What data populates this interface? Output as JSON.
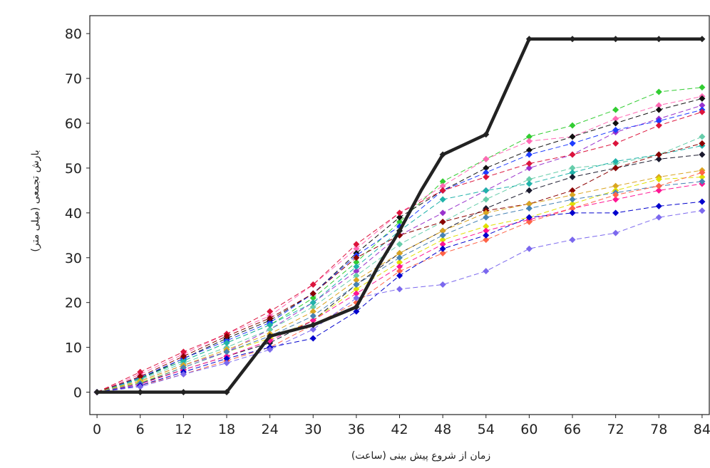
{
  "chart_data": {
    "type": "line",
    "title": "",
    "xlabel": "زمان از شروع پیش بینی (ساعت)",
    "ylabel": "بارش تجمعی (میلی متر)",
    "x": [
      0,
      6,
      12,
      18,
      24,
      30,
      36,
      42,
      48,
      54,
      60,
      66,
      72,
      78,
      84
    ],
    "xticks": [
      "0",
      "6",
      "12",
      "18",
      "24",
      "30",
      "36",
      "42",
      "48",
      "54",
      "60",
      "66",
      "72",
      "78",
      "84"
    ],
    "yticks": [
      "0",
      "10",
      "20",
      "30",
      "40",
      "50",
      "60",
      "70",
      "80"
    ],
    "xlim": [
      -1,
      85
    ],
    "ylim": [
      -5,
      84
    ],
    "grid": false,
    "legend": "none",
    "observed": {
      "color": "#222222",
      "x": [
        0,
        6,
        12,
        18,
        24,
        30,
        36,
        39,
        42,
        45,
        48,
        54,
        60,
        66,
        72,
        78,
        84
      ],
      "values": [
        0,
        0,
        0,
        0,
        12.5,
        15,
        19,
        28,
        36,
        45,
        53,
        57.5,
        78.8,
        78.8,
        78.8,
        78.8,
        78.8
      ]
    },
    "series": [
      {
        "color": "#32cd32",
        "values": [
          0,
          3.2,
          7,
          11,
          15,
          21,
          29,
          38,
          47,
          52,
          57,
          59.5,
          63,
          67,
          68
        ]
      },
      {
        "color": "#ff69b4",
        "values": [
          0,
          4,
          8.5,
          13,
          17,
          24,
          32,
          40,
          46,
          52,
          56,
          57,
          61,
          64,
          66
        ]
      },
      {
        "color": "#111111",
        "values": [
          0,
          3,
          7.5,
          12,
          16,
          22,
          31,
          39,
          45,
          50,
          54,
          57,
          60,
          63,
          65.5
        ]
      },
      {
        "color": "#9932cc",
        "values": [
          0,
          2.5,
          6,
          9,
          14,
          20,
          27,
          35,
          40,
          45,
          50,
          53,
          58,
          61,
          64
        ]
      },
      {
        "color": "#1e3cff",
        "values": [
          0,
          3.3,
          7.5,
          11.5,
          15.5,
          22,
          30.5,
          37,
          45,
          49,
          53,
          55.5,
          58.5,
          60.5,
          63
        ]
      },
      {
        "color": "#dc143c",
        "values": [
          0,
          4.5,
          9,
          13,
          18,
          24,
          33,
          40,
          45,
          48,
          51,
          53,
          55.5,
          59.5,
          62.5
        ]
      },
      {
        "color": "#66cdaa",
        "values": [
          0,
          2.8,
          6.5,
          10,
          14,
          19,
          26,
          33,
          38,
          43,
          47.5,
          50,
          51,
          53,
          57
        ]
      },
      {
        "color": "#20b2aa",
        "values": [
          0,
          3,
          7,
          11,
          15,
          20,
          28,
          36,
          43,
          45,
          46.5,
          49,
          51.5,
          53,
          55
        ]
      },
      {
        "color": "#1a1a2e",
        "values": [
          0,
          2,
          5,
          8,
          11,
          16,
          24,
          31,
          36,
          41,
          45,
          48,
          50,
          52,
          53
        ]
      },
      {
        "color": "#8b0000",
        "values": [
          0,
          3.5,
          8,
          12.5,
          16.5,
          22,
          30,
          35,
          38,
          40.5,
          42,
          45,
          50,
          53,
          55.5
        ]
      },
      {
        "color": "#daa520",
        "values": [
          0,
          2.5,
          6,
          9.5,
          13,
          18,
          25,
          31,
          36,
          40,
          42,
          44,
          46,
          48,
          49.5
        ]
      },
      {
        "color": "#e0e000",
        "values": [
          0,
          2.2,
          5.5,
          9,
          12,
          16,
          23,
          29,
          34,
          37,
          39,
          42,
          45,
          47.5,
          48
        ]
      },
      {
        "color": "#ff1493",
        "values": [
          0,
          1.8,
          5,
          8,
          11.5,
          16,
          22,
          28,
          33,
          36,
          38.5,
          41,
          43,
          45,
          46.5
        ]
      },
      {
        "color": "#4682b4",
        "values": [
          0,
          2,
          5.5,
          9,
          12.5,
          17,
          24,
          30,
          35,
          39,
          41,
          43,
          44.5,
          46,
          47
        ]
      },
      {
        "color": "#ff6347",
        "values": [
          0,
          1.5,
          4,
          7,
          10,
          15,
          20,
          27,
          31,
          34,
          38,
          41,
          44,
          46,
          49
        ]
      },
      {
        "color": "#0000cd",
        "values": [
          0,
          1.5,
          4.5,
          7.5,
          10,
          12,
          18,
          26,
          32,
          35,
          39,
          40,
          40,
          41.5,
          42.5
        ]
      },
      {
        "color": "#7b68ee",
        "values": [
          0,
          1.2,
          4,
          6.5,
          9.5,
          14,
          21,
          23,
          24,
          27,
          32,
          34,
          35.5,
          39,
          40.5
        ]
      }
    ]
  }
}
